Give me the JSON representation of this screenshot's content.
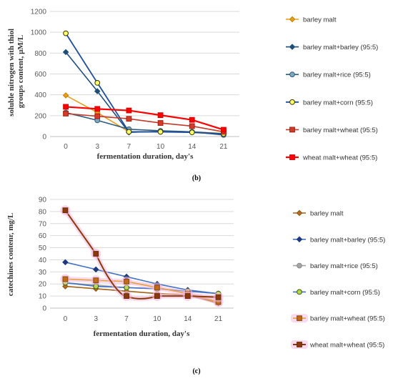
{
  "chart_data": [
    {
      "type": "line",
      "panel_label": "(b)",
      "xlabel": "fermentation duration, day's",
      "ylabel_lines": [
        "soluble nitrogen with thiol",
        "groups content, µM/L"
      ],
      "categories": [
        "0",
        "3",
        "7",
        "10",
        "14",
        "21"
      ],
      "ylim": [
        0,
        1200
      ],
      "yticks": [
        0,
        200,
        400,
        600,
        800,
        1000,
        1200
      ],
      "grid": true,
      "legend_position": "right",
      "series": [
        {
          "name": "barley malt",
          "values": [
            395,
            230,
            45,
            45,
            45,
            30
          ],
          "color": "#E59F1F",
          "marker": "diamond",
          "marker_fill": "#E59F1F",
          "marker_stroke": "#C57F00",
          "width": 1.6
        },
        {
          "name": "barley malt+barley (95:5)",
          "values": [
            810,
            435,
            40,
            50,
            45,
            25
          ],
          "color": "#1F4E79",
          "marker": "diamond",
          "marker_fill": "#1F4E79",
          "marker_stroke": "#1F4E79",
          "width": 1.6
        },
        {
          "name": "barley malt+rice (95:5)",
          "values": [
            230,
            155,
            70,
            55,
            45,
            15
          ],
          "color": "#2E5D7E",
          "marker": "circle",
          "marker_fill": "#7FA6C0",
          "marker_stroke": "#2E5D7E",
          "width": 1.6
        },
        {
          "name": "barley malt+corn (95:5)",
          "values": [
            990,
            515,
            45,
            45,
            40,
            25
          ],
          "color": "#1F4E9A",
          "marker": "circle",
          "marker_fill": "#FFFF66",
          "marker_stroke": "#333300",
          "width": 1.8
        },
        {
          "name": "barley malt+wheat (95:5)",
          "values": [
            220,
            195,
            170,
            130,
            100,
            45
          ],
          "color": "#C0392B",
          "marker": "square",
          "marker_fill": "#D43A2A",
          "marker_stroke": "#A02010",
          "width": 1.6
        },
        {
          "name": "wheat malt+wheat (95:5)",
          "values": [
            285,
            265,
            250,
            205,
            160,
            65
          ],
          "color": "#FF0000",
          "marker": "square",
          "marker_fill": "#FF0000",
          "marker_stroke": "#CC0000",
          "width": 2.2
        }
      ]
    },
    {
      "type": "line",
      "panel_label": "(c)",
      "xlabel": "fermentation duration, day's",
      "ylabel_lines": [
        "catechines contenr, mg/L"
      ],
      "categories": [
        "0",
        "3",
        "7",
        "10",
        "14",
        "21"
      ],
      "ylim": [
        0,
        90
      ],
      "yticks": [
        0,
        10,
        20,
        30,
        40,
        50,
        60,
        70,
        80,
        90
      ],
      "grid": true,
      "legend_position": "right",
      "series": [
        {
          "name": "barley malt",
          "values": [
            18,
            16,
            14,
            12,
            11,
            4
          ],
          "color": "#A0621A",
          "marker": "diamond",
          "marker_fill": "#B07020",
          "marker_stroke": "#8A5010",
          "width": 1.6
        },
        {
          "name": "barley malt+barley (95:5)",
          "values": [
            38,
            32,
            26,
            20,
            15,
            12
          ],
          "color": "#4472C4",
          "marker": "diamond",
          "marker_fill": "#1F3A7A",
          "marker_stroke": "#1F3A7A",
          "width": 1.6
        },
        {
          "name": "barley malt+rice (95:5)",
          "values": [
            21,
            19,
            17,
            16,
            14,
            12
          ],
          "color": "#A5A5A5",
          "marker": "circle",
          "marker_fill": "#A5A5A5",
          "marker_stroke": "#8A8A8A",
          "width": 1.6
        },
        {
          "name": "barley malt+corn (95:5)",
          "values": [
            21,
            18,
            17,
            16,
            14,
            12
          ],
          "color": "#4472C4",
          "marker": "circle",
          "marker_fill": "#B6D84A",
          "marker_stroke": "#3A5A10",
          "width": 1.6
        },
        {
          "name": "barley malt+wheat (95:5)",
          "values": [
            24,
            23,
            22,
            17,
            12,
            5
          ],
          "color": "#E6A03C",
          "marker": "square",
          "marker_fill": "#C06A1A",
          "marker_stroke": "#8A4A10",
          "width": 1.6,
          "glow": "#F4B8E0"
        },
        {
          "name": "wheat malt+wheat (95:5)",
          "values": [
            81,
            45,
            10,
            10,
            10,
            9
          ],
          "color": "#8A3A0A",
          "marker": "square",
          "marker_fill": "#8A3A0A",
          "marker_stroke": "#6A2A05",
          "width": 2.0,
          "glow": "#F4B8E0",
          "smooth_dip": true
        }
      ]
    }
  ]
}
